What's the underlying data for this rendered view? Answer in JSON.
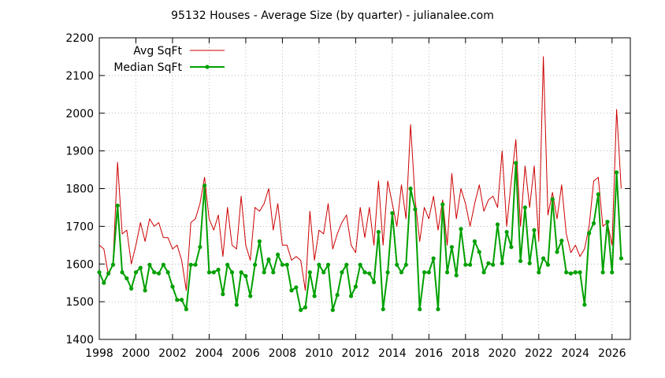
{
  "chart_data": {
    "type": "line",
    "title": "95132 Houses - Average Size (by quarter) - julianalee.com",
    "xlabel": "",
    "ylabel": "",
    "xlim": [
      1998,
      2027
    ],
    "ylim": [
      1400,
      2200
    ],
    "x_ticks": [
      "1998",
      "2000",
      "2002",
      "2004",
      "2006",
      "2008",
      "2010",
      "2012",
      "2014",
      "2016",
      "2018",
      "2020",
      "2022",
      "2024",
      "2026"
    ],
    "y_ticks": [
      "1400",
      "1500",
      "1600",
      "1700",
      "1800",
      "1900",
      "2000",
      "2100",
      "2200"
    ],
    "grid": true,
    "legend_position": "top-left",
    "series": [
      {
        "name": "Avg SqFt",
        "color": "#cc0000",
        "style": "line",
        "x": [
          1998.0,
          1998.25,
          1998.5,
          1998.75,
          1999.0,
          1999.25,
          1999.5,
          1999.75,
          2000.0,
          2000.25,
          2000.5,
          2000.75,
          2001.0,
          2001.25,
          2001.5,
          2001.75,
          2002.0,
          2002.25,
          2002.5,
          2002.75,
          2003.0,
          2003.25,
          2003.5,
          2003.75,
          2004.0,
          2004.25,
          2004.5,
          2004.75,
          2005.0,
          2005.25,
          2005.5,
          2005.75,
          2006.0,
          2006.25,
          2006.5,
          2006.75,
          2007.0,
          2007.25,
          2007.5,
          2007.75,
          2008.0,
          2008.25,
          2008.5,
          2008.75,
          2009.0,
          2009.25,
          2009.5,
          2009.75,
          2010.0,
          2010.25,
          2010.5,
          2010.75,
          2011.0,
          2011.25,
          2011.5,
          2011.75,
          2012.0,
          2012.25,
          2012.5,
          2012.75,
          2013.0,
          2013.25,
          2013.5,
          2013.75,
          2014.0,
          2014.25,
          2014.5,
          2014.75,
          2015.0,
          2015.25,
          2015.5,
          2015.75,
          2016.0,
          2016.25,
          2016.5,
          2016.75,
          2017.0,
          2017.25,
          2017.5,
          2017.75,
          2018.0,
          2018.25,
          2018.5,
          2018.75,
          2019.0,
          2019.25,
          2019.5,
          2019.75,
          2020.0,
          2020.25,
          2020.5,
          2020.75,
          2021.0,
          2021.25,
          2021.5,
          2021.75,
          2022.0,
          2022.25,
          2022.5,
          2022.75,
          2023.0,
          2023.25,
          2023.5,
          2023.75,
          2024.0,
          2024.25,
          2024.5,
          2024.75,
          2025.0,
          2025.25,
          2025.5,
          2025.75,
          2026.0,
          2026.25,
          2026.5
        ],
        "values": [
          1650,
          1640,
          1570,
          1600,
          1870,
          1680,
          1690,
          1600,
          1650,
          1710,
          1660,
          1720,
          1700,
          1710,
          1670,
          1670,
          1640,
          1650,
          1610,
          1530,
          1710,
          1720,
          1760,
          1830,
          1720,
          1690,
          1730,
          1620,
          1750,
          1650,
          1640,
          1780,
          1650,
          1610,
          1750,
          1740,
          1760,
          1800,
          1690,
          1760,
          1650,
          1650,
          1610,
          1620,
          1610,
          1530,
          1740,
          1610,
          1690,
          1680,
          1760,
          1640,
          1680,
          1710,
          1730,
          1650,
          1630,
          1750,
          1670,
          1750,
          1650,
          1820,
          1650,
          1820,
          1760,
          1700,
          1810,
          1720,
          1970,
          1770,
          1660,
          1750,
          1720,
          1780,
          1690,
          1770,
          1650,
          1840,
          1720,
          1800,
          1760,
          1700,
          1760,
          1810,
          1740,
          1770,
          1780,
          1750,
          1900,
          1700,
          1820,
          1930,
          1700,
          1860,
          1750,
          1860,
          1660,
          2150,
          1730,
          1790,
          1720,
          1810,
          1680,
          1630,
          1650,
          1620,
          1640,
          1700,
          1820,
          1830,
          1700,
          1710,
          1650,
          2010,
          1800
        ]
      },
      {
        "name": "Median SqFt",
        "color": "#00a000",
        "style": "linespoints",
        "x": [
          1998.0,
          1998.25,
          1998.5,
          1998.75,
          1999.0,
          1999.25,
          1999.5,
          1999.75,
          2000.0,
          2000.25,
          2000.5,
          2000.75,
          2001.0,
          2001.25,
          2001.5,
          2001.75,
          2002.0,
          2002.25,
          2002.5,
          2002.75,
          2003.0,
          2003.25,
          2003.5,
          2003.75,
          2004.0,
          2004.25,
          2004.5,
          2004.75,
          2005.0,
          2005.25,
          2005.5,
          2005.75,
          2006.0,
          2006.25,
          2006.5,
          2006.75,
          2007.0,
          2007.25,
          2007.5,
          2007.75,
          2008.0,
          2008.25,
          2008.5,
          2008.75,
          2009.0,
          2009.25,
          2009.5,
          2009.75,
          2010.0,
          2010.25,
          2010.5,
          2010.75,
          2011.0,
          2011.25,
          2011.5,
          2011.75,
          2012.0,
          2012.25,
          2012.5,
          2012.75,
          2013.0,
          2013.25,
          2013.5,
          2013.75,
          2014.0,
          2014.25,
          2014.5,
          2014.75,
          2015.0,
          2015.25,
          2015.5,
          2015.75,
          2016.0,
          2016.25,
          2016.5,
          2016.75,
          2017.0,
          2017.25,
          2017.5,
          2017.75,
          2018.0,
          2018.25,
          2018.5,
          2018.75,
          2019.0,
          2019.25,
          2019.5,
          2019.75,
          2020.0,
          2020.25,
          2020.5,
          2020.75,
          2021.0,
          2021.25,
          2021.5,
          2021.75,
          2022.0,
          2022.25,
          2022.5,
          2022.75,
          2023.0,
          2023.25,
          2023.5,
          2023.75,
          2024.0,
          2024.25,
          2024.5,
          2024.75,
          2025.0,
          2025.25,
          2025.5,
          2025.75,
          2026.0,
          2026.25,
          2026.5
        ],
        "values": [
          1578,
          1550,
          1575,
          1598,
          1755,
          1578,
          1562,
          1535,
          1578,
          1590,
          1530,
          1598,
          1578,
          1575,
          1598,
          1578,
          1540,
          1505,
          1505,
          1480,
          1598,
          1598,
          1645,
          1808,
          1578,
          1578,
          1585,
          1520,
          1598,
          1578,
          1492,
          1578,
          1568,
          1515,
          1598,
          1660,
          1578,
          1612,
          1578,
          1625,
          1598,
          1598,
          1530,
          1538,
          1478,
          1485,
          1578,
          1515,
          1598,
          1578,
          1598,
          1478,
          1518,
          1578,
          1598,
          1515,
          1540,
          1598,
          1578,
          1575,
          1552,
          1685,
          1480,
          1578,
          1735,
          1598,
          1578,
          1598,
          1800,
          1745,
          1480,
          1578,
          1578,
          1615,
          1480,
          1758,
          1578,
          1645,
          1570,
          1693,
          1598,
          1598,
          1660,
          1632,
          1578,
          1602,
          1598,
          1705,
          1602,
          1685,
          1645,
          1868,
          1608,
          1750,
          1602,
          1690,
          1578,
          1615,
          1598,
          1772,
          1632,
          1662,
          1578,
          1575,
          1578,
          1578,
          1492,
          1682,
          1708,
          1785,
          1578,
          1712,
          1578,
          1843,
          1615
        ]
      }
    ]
  }
}
